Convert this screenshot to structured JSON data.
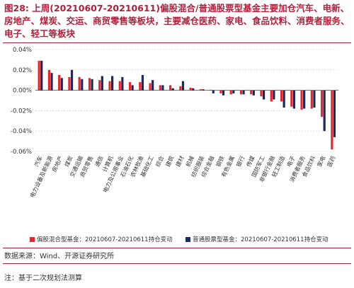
{
  "header": {
    "title": "图28: 上周(20210607-20210611)偏股混合/普通股票型基金主要加仓汽车、电新、房地产、煤炭、交运、商贸零售等板块，主要减仓医药、家电、食品饮料、消费者服务、电子、轻工等板块"
  },
  "footer": {
    "source": "数据来源：Wind、开源证券研究所",
    "note": "注：基于二次规划法测算"
  },
  "colors": {
    "red": "#e8242c",
    "navy": "#1a2a5a",
    "title": "#b0203a",
    "grid": "#cfcfcf"
  },
  "chart_data": {
    "type": "bar",
    "categories": [
      "汽车",
      "电力设备及新能源",
      "房地产",
      "煤炭",
      "交通运输",
      "商贸零售",
      "通信",
      "计算机",
      "电力及公用事业",
      "石油石化",
      "农林牧渔",
      "基础化工",
      "综合",
      "建筑",
      "建材",
      "机械",
      "纺织服装",
      "综合金融",
      "钢铁",
      "有色金属",
      "银行",
      "传媒",
      "国防军工",
      "非银行金融",
      "轻工制造",
      "电子",
      "消费者服务",
      "食品饮料",
      "家电",
      "医药"
    ],
    "series": [
      {
        "name": "偏股混合型基金：20210607-20210611持仓变动",
        "values": [
          0.029,
          0.02,
          0.015,
          0.013,
          0.013,
          0.012,
          0.01,
          0.009,
          0.009,
          0.008,
          0.008,
          0.007,
          0.005,
          0.005,
          0.004,
          0.0025,
          0.001,
          0.0005,
          -0.003,
          -0.004,
          -0.004,
          -0.004,
          -0.006,
          -0.011,
          -0.011,
          -0.016,
          -0.019,
          -0.018,
          -0.026,
          -0.058
        ]
      },
      {
        "name": "普通股票型基金：20210607-20210611持仓变动",
        "values": [
          0.029,
          0.017,
          0.012,
          0.02,
          0.011,
          0.011,
          0.014,
          0.014,
          0.013,
          0.005,
          0.015,
          0.01,
          0.005,
          0.002,
          0.009,
          0.002,
          0.001,
          -0.003,
          -0.005,
          -0.003,
          -0.004,
          -0.005,
          -0.009,
          -0.009,
          -0.017,
          -0.018,
          -0.018,
          -0.017,
          -0.04,
          -0.046
        ]
      }
    ],
    "ylim": [
      -0.06,
      0.04
    ],
    "yticks": [
      "0.04%",
      "0.02%",
      "0.00%",
      "-0.02%",
      "-0.04%",
      "-0.06%"
    ],
    "ytick_values": [
      0.04,
      0.02,
      0.0,
      -0.02,
      -0.04,
      -0.06
    ],
    "grid": true,
    "legend_position": "bottom"
  }
}
